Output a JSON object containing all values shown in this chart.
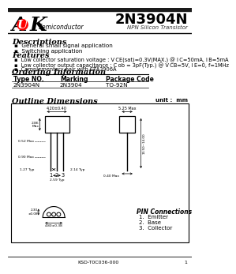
{
  "title": "2N3904N",
  "subtitle": "NPN Silicon Transistor",
  "bg_color": "#ffffff",
  "header_bar_color": "#1a1a1a",
  "desc_title": "Descriptions",
  "desc_bullets": [
    "General small signal application",
    "Switching application"
  ],
  "feat_title": "Features",
  "feat_bullets": [
    "Low collector saturation voltage : V CE(sat)=0.3V(MAX.) @ I C=50mA, I B=5mA",
    "Low collector output capacitance : C ob = 3pF(Typ.) @ V CB=5V, I E=0, f=1MHz",
    "Complementary pair with STA3906A"
  ],
  "order_title": "Ordering Information",
  "order_headers": [
    "Type NO.",
    "Marking",
    "Package Code"
  ],
  "order_row": [
    "2N3904N",
    "2N3904",
    "TO-92N"
  ],
  "outline_title": "Outline Dimensions",
  "outline_unit": "unit :  mm",
  "pin_title": "PIN Connections",
  "pin_connections": [
    "1.  Emitter",
    "2.  Base",
    "3.  Collector"
  ],
  "footer": "KSD-T0C036-000",
  "page": "1"
}
